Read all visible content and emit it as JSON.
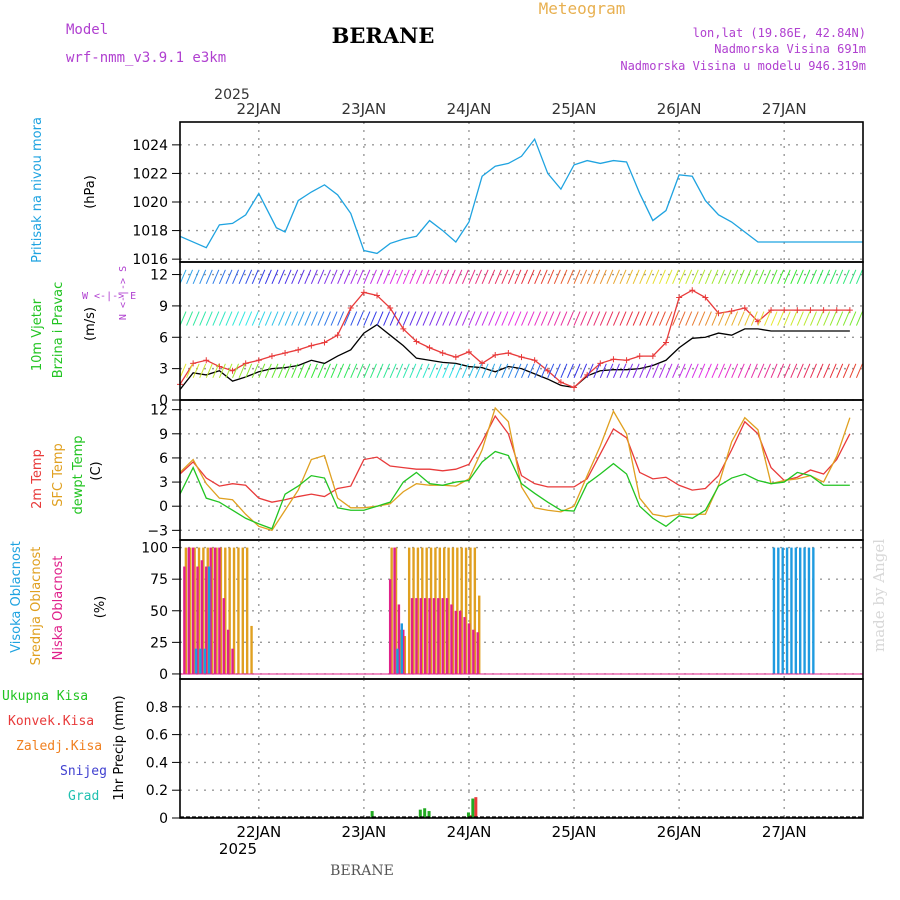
{
  "header": {
    "model_label": "Model",
    "model_name": "wrf-nmm_v3.9.1  e3km",
    "station": "BERANE",
    "chart_title": "Meteogram",
    "location": "lon,lat (19.86E, 42.84N)",
    "altitude": "Nadmorska Visina 691m",
    "model_altitude": "Nadmorska Visina u modelu 946.319m",
    "bottom_station": "BERANE",
    "watermark": "made by Angel"
  },
  "time_axis": {
    "labels": [
      "22JAN",
      "23JAN",
      "24JAN",
      "25JAN",
      "26JAN",
      "27JAN"
    ],
    "year": "2025"
  },
  "colors": {
    "pressure": "#1fa3e0",
    "temp2m": "#e83a3a",
    "sfc_temp": "#e0a020",
    "dewpoint": "#22c422",
    "wind_speed": "#000000",
    "gust": "#e83a3a",
    "high_cloud": "#1f9be0",
    "mid_cloud": "#e0a020",
    "low_cloud": "#e0208a",
    "total_precip": "#22aa22",
    "conv_precip": "#e83a3a",
    "frozen_precip": "#f08020",
    "snow": "#4040d0",
    "graupel": "#20c0b0",
    "purple_text": "#b040d0",
    "orange_text": "#e8b050"
  },
  "chart_data": [
    {
      "id": "pressure",
      "type": "line",
      "ylabel_main": "Pritisak na nivou mora",
      "ylabel_unit": "(hPa)",
      "ylim": [
        1015.8,
        1025.6
      ],
      "yticks": [
        1016,
        1018,
        1020,
        1022,
        1024
      ],
      "x_hours": [
        0,
        6,
        9,
        12,
        15,
        18,
        22,
        24,
        27,
        30,
        33,
        36,
        39,
        42,
        45,
        48,
        51,
        54,
        57,
        60,
        63,
        66,
        69,
        72,
        75,
        78,
        81,
        84,
        87,
        90,
        93,
        96,
        99,
        102,
        105,
        108,
        111,
        114,
        117,
        120,
        123,
        126,
        129,
        132,
        135,
        138,
        141,
        144,
        147,
        150,
        153,
        156
      ],
      "series": [
        {
          "name": "MSL pressure",
          "values": [
            1017.6,
            1016.8,
            1018.4,
            1018.5,
            1019.1,
            1020.6,
            1018.2,
            1017.9,
            1020.1,
            1020.7,
            1021.2,
            1020.5,
            1019.2,
            1016.6,
            1016.4,
            1017.1,
            1017.4,
            1017.6,
            1018.7,
            1018.0,
            1017.2,
            1018.6,
            1021.8,
            1022.5,
            1022.7,
            1023.2,
            1024.4,
            1022.0,
            1020.9,
            1022.6,
            1022.9,
            1022.7,
            1022.9,
            1022.8,
            1020.6,
            1018.7,
            1019.4,
            1021.9,
            1021.8,
            1020.1,
            1019.1,
            1018.6,
            1017.9,
            1017.2,
            1017.2,
            1017.2,
            1017.2,
            1017.2,
            1017.2,
            1017.2,
            1017.2,
            1017.2
          ]
        }
      ]
    },
    {
      "id": "wind",
      "type": "line",
      "ylabel_main": "10m Vjetar",
      "ylabel_sub": "Brzina i Pravac",
      "ylabel_unit": "(m/s)",
      "compass": "W <-|-> E",
      "compass_n": "N <-|-> S",
      "ylim": [
        0,
        13.2
      ],
      "yticks": [
        0,
        3,
        6,
        9,
        12
      ],
      "x_hours": [
        0,
        3,
        6,
        9,
        12,
        15,
        18,
        21,
        24,
        27,
        30,
        33,
        36,
        39,
        42,
        45,
        48,
        51,
        54,
        57,
        60,
        63,
        66,
        69,
        72,
        75,
        78,
        81,
        84,
        87,
        90,
        93,
        96,
        99,
        102,
        105,
        108,
        111,
        114,
        117,
        120,
        123,
        126,
        129,
        132,
        135,
        138,
        141,
        144,
        147,
        150,
        153
      ],
      "series": [
        {
          "name": "wind speed",
          "values": [
            1.0,
            2.6,
            2.4,
            2.8,
            1.8,
            2.2,
            2.7,
            3.0,
            3.1,
            3.3,
            3.8,
            3.5,
            4.2,
            4.8,
            6.4,
            7.2,
            6.2,
            5.2,
            4.0,
            3.8,
            3.6,
            3.5,
            3.2,
            3.1,
            2.7,
            3.2,
            3.0,
            2.5,
            2.0,
            1.4,
            1.2,
            2.3,
            2.8,
            2.9,
            2.9,
            3.0,
            3.3,
            3.8,
            5.0,
            5.9,
            6.0,
            6.4,
            6.2,
            6.8,
            6.8,
            6.6,
            6.6,
            6.6,
            6.6,
            6.6,
            6.6,
            6.6
          ]
        },
        {
          "name": "gusts",
          "values": [
            1.5,
            3.5,
            3.8,
            3.2,
            2.8,
            3.5,
            3.8,
            4.2,
            4.5,
            4.8,
            5.2,
            5.5,
            6.2,
            8.8,
            10.3,
            10.0,
            8.8,
            6.8,
            5.6,
            5.0,
            4.5,
            4.1,
            4.6,
            3.5,
            4.3,
            4.5,
            4.1,
            3.8,
            2.8,
            1.7,
            1.2,
            2.4,
            3.5,
            3.9,
            3.8,
            4.2,
            4.2,
            5.5,
            9.8,
            10.5,
            9.8,
            8.3,
            8.5,
            8.8,
            7.5,
            8.6,
            8.6,
            8.6,
            8.6,
            8.6,
            8.6,
            8.6
          ]
        }
      ]
    },
    {
      "id": "temperature",
      "type": "line",
      "ylabel_main": "2m Temp",
      "ylabel_sub": "SFC Temp",
      "ylabel_sub2": "dewpt Temp",
      "ylabel_unit": "(C)",
      "ylim": [
        -4.2,
        13.2
      ],
      "yticks": [
        -3,
        0,
        3,
        6,
        9,
        12
      ],
      "x_hours": [
        0,
        3,
        6,
        9,
        12,
        15,
        18,
        21,
        24,
        27,
        30,
        33,
        36,
        39,
        42,
        45,
        48,
        51,
        54,
        57,
        60,
        63,
        66,
        69,
        72,
        75,
        78,
        81,
        84,
        87,
        90,
        93,
        96,
        99,
        102,
        105,
        108,
        111,
        114,
        117,
        120,
        123,
        126,
        129,
        132,
        135,
        138,
        141,
        144,
        147,
        150,
        153
      ],
      "series": [
        {
          "name": "2m Temp",
          "values": [
            4.0,
            5.5,
            3.5,
            2.5,
            2.8,
            2.6,
            1.0,
            0.5,
            0.8,
            1.2,
            1.5,
            1.2,
            2.2,
            2.5,
            5.8,
            6.1,
            5.0,
            4.8,
            4.6,
            4.6,
            4.4,
            4.6,
            5.2,
            8.0,
            11.2,
            9.0,
            3.8,
            2.8,
            2.4,
            2.4,
            2.4,
            3.4,
            6.5,
            9.6,
            8.5,
            4.2,
            3.4,
            3.6,
            2.6,
            2.0,
            2.2,
            3.8,
            7.0,
            10.5,
            9.0,
            4.8,
            3.2,
            3.6,
            4.5,
            4.0,
            5.8,
            9.0
          ]
        },
        {
          "name": "SFC Temp",
          "values": [
            4.2,
            5.8,
            2.8,
            1.0,
            0.8,
            -1.0,
            -2.5,
            -3.0,
            -0.5,
            2.0,
            5.8,
            6.3,
            1.0,
            -0.2,
            -0.2,
            0.0,
            0.3,
            1.8,
            2.8,
            2.6,
            2.6,
            2.5,
            3.4,
            7.0,
            12.2,
            10.5,
            2.4,
            -0.2,
            -0.5,
            -0.7,
            0.0,
            3.8,
            7.5,
            11.8,
            9.0,
            1.0,
            -1.0,
            -1.3,
            -1.0,
            -1.0,
            -1.0,
            2.6,
            8.0,
            11.0,
            9.5,
            2.8,
            3.2,
            3.4,
            3.8,
            3.0,
            6.2,
            11.0
          ]
        },
        {
          "name": "dewpt Temp",
          "values": [
            1.5,
            4.8,
            1.0,
            0.5,
            -0.5,
            -1.5,
            -2.2,
            -2.8,
            1.5,
            2.5,
            3.8,
            3.5,
            -0.2,
            -0.5,
            -0.5,
            0.0,
            0.5,
            3.0,
            4.2,
            2.8,
            2.6,
            3.0,
            3.2,
            5.5,
            6.8,
            6.3,
            2.8,
            1.6,
            0.5,
            -0.5,
            -0.6,
            2.8,
            4.0,
            5.3,
            4.0,
            0.0,
            -1.5,
            -2.5,
            -1.2,
            -1.5,
            -0.5,
            2.5,
            3.5,
            4.0,
            3.2,
            2.8,
            3.0,
            4.2,
            3.8,
            2.6,
            2.6,
            2.6
          ]
        }
      ]
    },
    {
      "id": "clouds",
      "type": "bar",
      "ylabel_main": "Visoka Oblacnost",
      "ylabel_sub": "Srednja Oblacnost",
      "ylabel_sub2": "Niska Oblacnost",
      "ylabel_unit": "(%)",
      "ylim": [
        -4,
        106
      ],
      "yticks": [
        0,
        25,
        50,
        75,
        100
      ],
      "x_hours": [
        1,
        2,
        3,
        4,
        5,
        6,
        7,
        8,
        9,
        10,
        11,
        12,
        13,
        14,
        15,
        16,
        17,
        48,
        49,
        50,
        51,
        52,
        53,
        54,
        55,
        56,
        57,
        58,
        59,
        60,
        61,
        62,
        63,
        64,
        65,
        66,
        67,
        68,
        69,
        70,
        71,
        72,
        73,
        136,
        137,
        138,
        139,
        140,
        141,
        142,
        143,
        144,
        145
      ],
      "series": [
        {
          "name": "high",
          "values": [
            0,
            0,
            0,
            20,
            20,
            20,
            85,
            0,
            0,
            0,
            0,
            0,
            0,
            0,
            0,
            0,
            0,
            0,
            0,
            20,
            40,
            0,
            0,
            0,
            0,
            0,
            0,
            0,
            0,
            0,
            0,
            0,
            0,
            0,
            0,
            0,
            0,
            0,
            0,
            0,
            0,
            0,
            0,
            100,
            100,
            100,
            100,
            100,
            100,
            100,
            100,
            100,
            100
          ]
        },
        {
          "name": "mid",
          "values": [
            100,
            100,
            100,
            100,
            100,
            100,
            100,
            100,
            100,
            100,
            100,
            100,
            100,
            100,
            100,
            38,
            0,
            100,
            100,
            35,
            30,
            100,
            100,
            100,
            100,
            100,
            100,
            100,
            100,
            100,
            100,
            100,
            100,
            100,
            100,
            100,
            100,
            62,
            0,
            0,
            0,
            0,
            0,
            0,
            0,
            0,
            0,
            0,
            0,
            0,
            0,
            0,
            0
          ]
        },
        {
          "name": "low",
          "values": [
            85,
            100,
            100,
            85,
            90,
            85,
            100,
            100,
            100,
            60,
            35,
            20,
            0,
            0,
            0,
            0,
            0,
            75,
            100,
            55,
            35,
            0,
            60,
            60,
            60,
            60,
            60,
            60,
            60,
            60,
            60,
            55,
            50,
            50,
            45,
            40,
            35,
            33,
            0,
            0,
            0,
            0,
            0,
            0,
            0,
            0,
            0,
            0,
            0,
            0,
            0,
            0,
            0
          ]
        }
      ]
    },
    {
      "id": "precip",
      "type": "bar",
      "ylabel_unit": "1hr Precip (mm)",
      "legend": [
        "Ukupna Kisa",
        "Konvek.Kisa",
        "Zaledj.Kisa",
        "Snijeg",
        "Grad"
      ],
      "ylim": [
        0,
        1.0
      ],
      "yticks": [
        0,
        0.2,
        0.4,
        0.6,
        0.8
      ],
      "x_hours": [
        4,
        44,
        55,
        56,
        57,
        66,
        67
      ],
      "series": [
        {
          "name": "total",
          "values": [
            0.005,
            0.05,
            0.06,
            0.07,
            0.05,
            0.04,
            0.14
          ]
        },
        {
          "name": "convective",
          "values": [
            0,
            0,
            0,
            0,
            0,
            0.02,
            0.15
          ]
        }
      ]
    }
  ]
}
